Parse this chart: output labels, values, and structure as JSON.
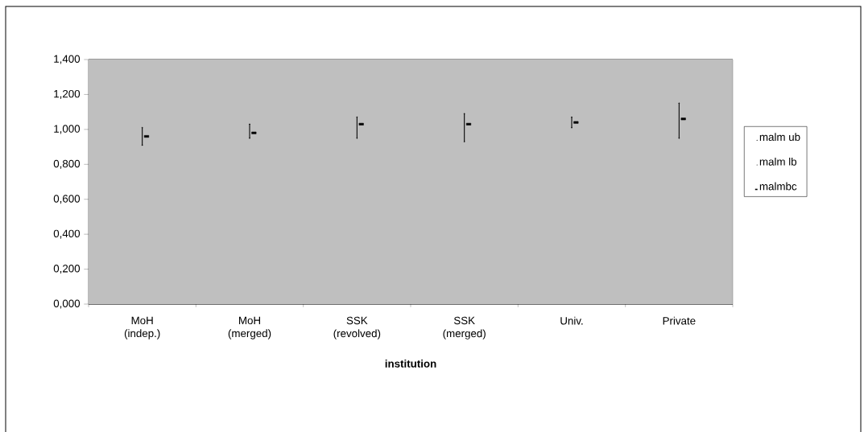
{
  "chart_data": {
    "type": "scatter",
    "xlabel": "institution",
    "categories": [
      "MoH (indep.)",
      "MoH (merged)",
      "SSK (revolved)",
      "SSK (merged)",
      "Univ.",
      "Private"
    ],
    "series": [
      {
        "name": "malm ub",
        "color": "#000000",
        "marker": "none",
        "values": [
          1.01,
          1.03,
          1.07,
          1.09,
          1.07,
          1.15
        ]
      },
      {
        "name": "malm lb",
        "color": "#000000",
        "marker": "none",
        "values": [
          0.91,
          0.95,
          0.95,
          0.93,
          1.01,
          0.95
        ]
      },
      {
        "name": "malmbc",
        "color": "#000000",
        "marker": "square",
        "values": [
          0.96,
          0.98,
          1.03,
          1.03,
          1.04,
          1.06
        ]
      }
    ],
    "ylim": [
      0,
      1.4
    ],
    "yticks": [
      {
        "value": 0,
        "label": "0,000"
      },
      {
        "value": 0.2,
        "label": "0,200"
      },
      {
        "value": 0.4,
        "label": "0,400"
      },
      {
        "value": 0.6,
        "label": "0,600"
      },
      {
        "value": 0.8,
        "label": "0,800"
      },
      {
        "value": 1.0,
        "label": "1,000"
      },
      {
        "value": 1.2,
        "label": "1,200"
      },
      {
        "value": 1.4,
        "label": "1,400"
      }
    ],
    "grid": "y",
    "legend": "right"
  }
}
